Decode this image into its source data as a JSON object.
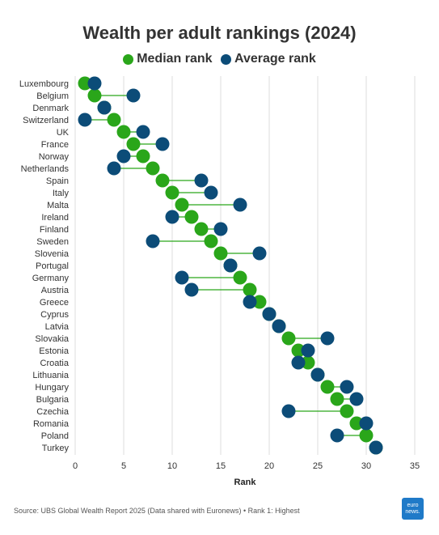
{
  "header": {
    "title": "Wealth per adult rankings (2024)"
  },
  "legend": {
    "median_label": "Median rank",
    "average_label": "Average rank"
  },
  "footer": {
    "source": "Source: UBS Global Wealth Report 2025 (Data shared with Euronews) • Rank 1: Highest",
    "logo_line1": "euro",
    "logo_line2": "news."
  },
  "colors": {
    "median": "#2aa61a",
    "average": "#0c4c78",
    "connector": "#2aa61a",
    "grid": "#dddddd"
  },
  "chart_data": {
    "type": "dumbbell",
    "xlabel": "Rank",
    "xlim": [
      0,
      35
    ],
    "xticks": [
      0,
      5,
      10,
      15,
      20,
      25,
      30,
      35
    ],
    "grid": "vertical",
    "legend_position": "top",
    "categories": [
      "Luxembourg",
      "Belgium",
      "Denmark",
      "Switzerland",
      "UK",
      "France",
      "Norway",
      "Netherlands",
      "Spain",
      "Italy",
      "Malta",
      "Ireland",
      "Finland",
      "Sweden",
      "Slovenia",
      "Portugal",
      "Germany",
      "Austria",
      "Greece",
      "Cyprus",
      "Latvia",
      "Slovakia",
      "Estonia",
      "Croatia",
      "Lithuania",
      "Hungary",
      "Bulgaria",
      "Czechia",
      "Romania",
      "Poland",
      "Turkey"
    ],
    "series": [
      {
        "name": "Median rank",
        "values": [
          1,
          2,
          3,
          4,
          5,
          6,
          7,
          8,
          9,
          10,
          11,
          12,
          13,
          14,
          15,
          16,
          17,
          18,
          19,
          20,
          21,
          22,
          23,
          24,
          25,
          26,
          27,
          28,
          29,
          30,
          31
        ]
      },
      {
        "name": "Average rank",
        "values": [
          2,
          6,
          3,
          1,
          7,
          9,
          5,
          4,
          13,
          14,
          17,
          10,
          15,
          8,
          19,
          16,
          11,
          12,
          18,
          20,
          21,
          26,
          24,
          23,
          25,
          28,
          29,
          22,
          30,
          27,
          31
        ]
      }
    ]
  }
}
